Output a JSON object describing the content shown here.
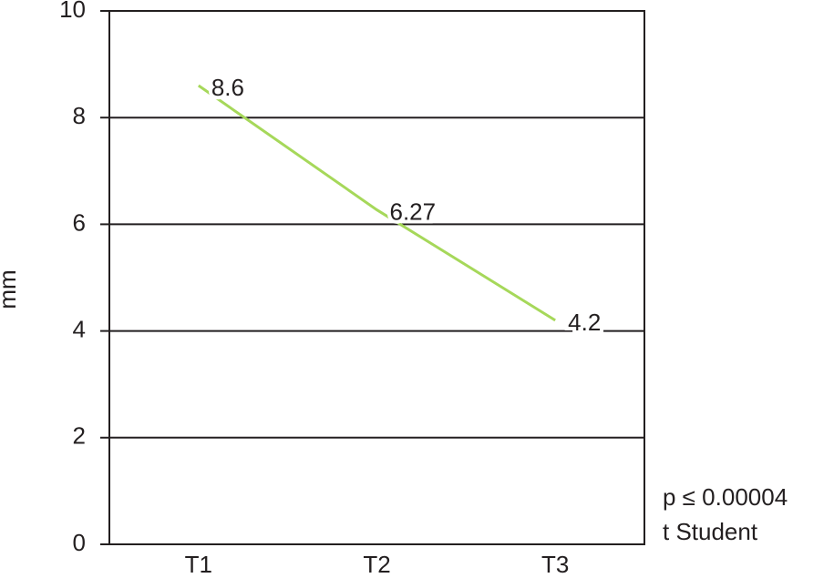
{
  "chart_data": {
    "type": "line",
    "y_label": "mm",
    "categories": [
      "T1",
      "T2",
      "T3"
    ],
    "values": [
      8.6,
      6.27,
      4.2
    ],
    "color": "#a6d85a",
    "ylim": [
      0,
      10
    ],
    "yticks": [
      0,
      2,
      4,
      6,
      8,
      10
    ],
    "grid": true,
    "annotations": [
      "p ≤ 0.00004",
      "t Student"
    ]
  }
}
